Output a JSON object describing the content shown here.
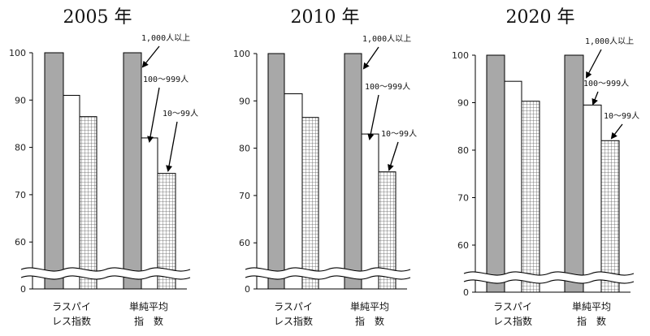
{
  "chart_data": [
    {
      "type": "bar",
      "title": "2005 年",
      "categories": [
        "ラスパイレス指数",
        "単純平均指数"
      ],
      "category_label_lines": [
        [
          "ラスパイ",
          "レス指数"
        ],
        [
          "単純平均",
          "指　数"
        ]
      ],
      "series": [
        {
          "name": "1,000人以上",
          "values": [
            100,
            100
          ]
        },
        {
          "name": "100～999人",
          "values": [
            91,
            82
          ]
        },
        {
          "name": "10～99人",
          "values": [
            86.5,
            74.5
          ]
        }
      ],
      "yticks": [
        "100",
        "90",
        "80",
        "70",
        "60",
        "0"
      ],
      "ylim": [
        0,
        100
      ],
      "axis_break": true,
      "annotations": [
        "1,000人以上",
        "100～999人",
        "10～99人"
      ]
    },
    {
      "type": "bar",
      "title": "2010 年",
      "categories": [
        "ラスパイレス指数",
        "単純平均指数"
      ],
      "category_label_lines": [
        [
          "ラスパイ",
          "レス指数"
        ],
        [
          "単純平均",
          "指　数"
        ]
      ],
      "series": [
        {
          "name": "1,000人以上",
          "values": [
            100,
            100
          ]
        },
        {
          "name": "100～999人",
          "values": [
            91.5,
            83
          ]
        },
        {
          "name": "10～99人",
          "values": [
            86.5,
            75
          ]
        }
      ],
      "yticks": [
        "100",
        "90",
        "80",
        "70",
        "60",
        "0"
      ],
      "ylim": [
        0,
        100
      ],
      "axis_break": true,
      "annotations": [
        "1,000人以上",
        "100～999人",
        "10～99人"
      ]
    },
    {
      "type": "bar",
      "title": "2020 年",
      "categories": [
        "ラスパイレス指数",
        "単純平均指数"
      ],
      "category_label_lines": [
        [
          "ラスパイ",
          "レス指数"
        ],
        [
          "単純平均",
          "指　数"
        ]
      ],
      "series": [
        {
          "name": "1,000人以上",
          "values": [
            100,
            100
          ]
        },
        {
          "name": "100～999人",
          "values": [
            94.5,
            89.5
          ]
        },
        {
          "name": "10～99人",
          "values": [
            90.3,
            82
          ]
        }
      ],
      "yticks": [
        "100",
        "90",
        "80",
        "70",
        "60",
        "0"
      ],
      "ylim": [
        0,
        100
      ],
      "axis_break": true,
      "annotations": [
        "1,000人以上",
        "100～999人",
        "10～99人"
      ]
    }
  ],
  "colors": {
    "large": "#a8a8a8",
    "medium": "#ffffff",
    "small_fill": "#ffffff",
    "small_grid": "#555555",
    "stroke": "#000000"
  }
}
